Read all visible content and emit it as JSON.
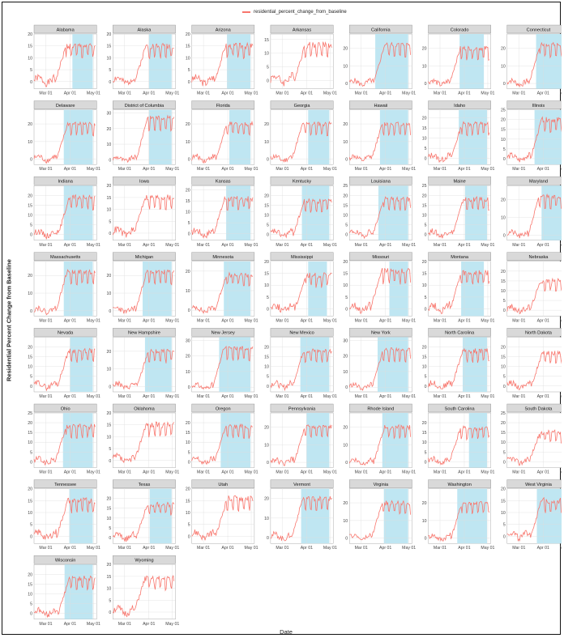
{
  "chart_data": {
    "type": "line",
    "legend": {
      "label": "residential_percent_change_from_baseline",
      "placement": "top",
      "color": "#F8766D"
    },
    "xlabel": "Date",
    "ylabel": "Residential Percent Change from Baseline",
    "x_ticks": [
      "Mar 01",
      "Apr 01",
      "May 01"
    ],
    "x_range": [
      "2020-02-15",
      "2020-05-05"
    ],
    "grid": true,
    "panel_strip_color": "#d9d9d9",
    "shade_color": "#bfe6f2",
    "series_color": "#F8766D",
    "panels": [
      {
        "name": "Alabama",
        "ylim": [
          -3,
          20
        ],
        "yticks": [
          0,
          5,
          10,
          15,
          20
        ],
        "level": 15,
        "shade_start": "2020-04-04",
        "shade_end": "2020-04-30"
      },
      {
        "name": "Alaska",
        "ylim": [
          -3,
          20
        ],
        "yticks": [
          0,
          5,
          10,
          15,
          20
        ],
        "level": 15,
        "shade_start": "2020-04-01",
        "shade_end": "2020-04-30"
      },
      {
        "name": "Arizona",
        "ylim": [
          -3,
          20
        ],
        "yticks": [
          0,
          5,
          10,
          15,
          20
        ],
        "level": 15,
        "shade_start": "2020-03-31",
        "shade_end": "2020-04-30"
      },
      {
        "name": "Arkansas",
        "ylim": [
          -3,
          17
        ],
        "yticks": [
          0,
          5,
          10,
          15
        ],
        "level": 13,
        "shade_start": null,
        "shade_end": null
      },
      {
        "name": "California",
        "ylim": [
          -3,
          28
        ],
        "yticks": [
          0,
          10,
          20
        ],
        "level": 22,
        "shade_start": "2020-03-19",
        "shade_end": "2020-04-30"
      },
      {
        "name": "Colorado",
        "ylim": [
          -3,
          28
        ],
        "yticks": [
          0,
          10,
          20
        ],
        "level": 20,
        "shade_start": "2020-03-26",
        "shade_end": "2020-04-26"
      },
      {
        "name": "Connecticut",
        "ylim": [
          -3,
          28
        ],
        "yticks": [
          0,
          10,
          20
        ],
        "level": 22,
        "shade_start": "2020-03-23",
        "shade_end": "2020-04-30"
      },
      {
        "name": "Delaware",
        "ylim": [
          -3,
          28
        ],
        "yticks": [
          0,
          10,
          20
        ],
        "level": 20,
        "shade_start": "2020-03-24",
        "shade_end": "2020-04-30"
      },
      {
        "name": "District of Columbia",
        "ylim": [
          -3,
          32
        ],
        "yticks": [
          0,
          10,
          20,
          30
        ],
        "level": 27,
        "shade_start": "2020-04-01",
        "shade_end": "2020-04-30"
      },
      {
        "name": "Florida",
        "ylim": [
          -3,
          28
        ],
        "yticks": [
          0,
          10,
          20
        ],
        "level": 20,
        "shade_start": "2020-04-03",
        "shade_end": "2020-04-30"
      },
      {
        "name": "Georgia",
        "ylim": [
          -3,
          28
        ],
        "yticks": [
          0,
          10,
          20
        ],
        "level": 20,
        "shade_start": "2020-04-03",
        "shade_end": "2020-04-30"
      },
      {
        "name": "Hawaii",
        "ylim": [
          -3,
          28
        ],
        "yticks": [
          0,
          10,
          20
        ],
        "level": 20,
        "shade_start": "2020-03-25",
        "shade_end": "2020-04-30"
      },
      {
        "name": "Idaho",
        "ylim": [
          -3,
          24
        ],
        "yticks": [
          0,
          5,
          10,
          15,
          20
        ],
        "level": 17,
        "shade_start": "2020-03-25",
        "shade_end": "2020-04-30"
      },
      {
        "name": "Illinois",
        "ylim": [
          -3,
          25
        ],
        "yticks": [
          0,
          5,
          10,
          15,
          20,
          25
        ],
        "level": 20,
        "shade_start": "2020-03-21",
        "shade_end": "2020-04-30"
      },
      {
        "name": "Indiana",
        "ylim": [
          -3,
          25
        ],
        "yticks": [
          0,
          5,
          10,
          15,
          20
        ],
        "level": 19,
        "shade_start": "2020-03-24",
        "shade_end": "2020-04-30"
      },
      {
        "name": "Iowa",
        "ylim": [
          -3,
          20
        ],
        "yticks": [
          0,
          5,
          10,
          15,
          20
        ],
        "level": 15,
        "shade_start": null,
        "shade_end": null
      },
      {
        "name": "Kansas",
        "ylim": [
          -3,
          22
        ],
        "yticks": [
          0,
          5,
          10,
          15,
          20
        ],
        "level": 16,
        "shade_start": "2020-03-30",
        "shade_end": "2020-04-30"
      },
      {
        "name": "Kentucky",
        "ylim": [
          -3,
          25
        ],
        "yticks": [
          0,
          5,
          10,
          15,
          20
        ],
        "level": 17,
        "shade_start": "2020-03-26",
        "shade_end": "2020-04-30"
      },
      {
        "name": "Louisiana",
        "ylim": [
          -3,
          25
        ],
        "yticks": [
          0,
          5,
          10,
          15,
          20,
          25
        ],
        "level": 18,
        "shade_start": "2020-03-23",
        "shade_end": "2020-04-30"
      },
      {
        "name": "Maine",
        "ylim": [
          -3,
          25
        ],
        "yticks": [
          0,
          5,
          10,
          15,
          20,
          25
        ],
        "level": 18,
        "shade_start": "2020-04-02",
        "shade_end": "2020-04-30"
      },
      {
        "name": "Maryland",
        "ylim": [
          -3,
          28
        ],
        "yticks": [
          0,
          10,
          20
        ],
        "level": 22,
        "shade_start": "2020-03-30",
        "shade_end": "2020-04-30"
      },
      {
        "name": "Massachusetts",
        "ylim": [
          -3,
          28
        ],
        "yticks": [
          0,
          10,
          20
        ],
        "level": 22,
        "shade_start": "2020-03-24",
        "shade_end": "2020-04-30"
      },
      {
        "name": "Michigan",
        "ylim": [
          -3,
          28
        ],
        "yticks": [
          0,
          10,
          20
        ],
        "level": 22,
        "shade_start": "2020-03-24",
        "shade_end": "2020-04-30"
      },
      {
        "name": "Minnesota",
        "ylim": [
          -3,
          25
        ],
        "yticks": [
          0,
          10,
          20
        ],
        "level": 18,
        "shade_start": "2020-03-27",
        "shade_end": "2020-04-30"
      },
      {
        "name": "Mississippi",
        "ylim": [
          -3,
          20
        ],
        "yticks": [
          0,
          5,
          10,
          15,
          20
        ],
        "level": 14,
        "shade_start": "2020-04-03",
        "shade_end": "2020-04-27"
      },
      {
        "name": "Missouri",
        "ylim": [
          -3,
          20
        ],
        "yticks": [
          0,
          5,
          10,
          15,
          20
        ],
        "level": 16,
        "shade_start": "2020-04-06",
        "shade_end": "2020-04-30"
      },
      {
        "name": "Montana",
        "ylim": [
          -3,
          20
        ],
        "yticks": [
          0,
          5,
          10,
          15,
          20
        ],
        "level": 15,
        "shade_start": "2020-03-28",
        "shade_end": "2020-04-26"
      },
      {
        "name": "Nebraska",
        "ylim": [
          -3,
          25
        ],
        "yticks": [
          0,
          5,
          10,
          15,
          20
        ],
        "level": 15,
        "shade_start": null,
        "shade_end": null
      },
      {
        "name": "Nevada",
        "ylim": [
          -3,
          25
        ],
        "yticks": [
          0,
          5,
          10,
          15,
          20
        ],
        "level": 18,
        "shade_start": "2020-04-01",
        "shade_end": "2020-04-30"
      },
      {
        "name": "New Hampshire",
        "ylim": [
          -3,
          28
        ],
        "yticks": [
          0,
          10,
          20
        ],
        "level": 20,
        "shade_start": "2020-03-27",
        "shade_end": "2020-04-30"
      },
      {
        "name": "New Jersey",
        "ylim": [
          -3,
          32
        ],
        "yticks": [
          0,
          10,
          20,
          30
        ],
        "level": 25,
        "shade_start": "2020-03-21",
        "shade_end": "2020-04-30"
      },
      {
        "name": "New Mexico",
        "ylim": [
          -3,
          25
        ],
        "yticks": [
          0,
          5,
          10,
          15,
          20
        ],
        "level": 18,
        "shade_start": "2020-03-24",
        "shade_end": "2020-04-30"
      },
      {
        "name": "New York",
        "ylim": [
          -3,
          32
        ],
        "yticks": [
          0,
          10,
          20,
          30
        ],
        "level": 24,
        "shade_start": "2020-03-22",
        "shade_end": "2020-04-30"
      },
      {
        "name": "North Carolina",
        "ylim": [
          -3,
          25
        ],
        "yticks": [
          0,
          5,
          10,
          15,
          20
        ],
        "level": 18,
        "shade_start": "2020-03-30",
        "shade_end": "2020-04-30"
      },
      {
        "name": "North Dakota",
        "ylim": [
          -3,
          25
        ],
        "yticks": [
          0,
          5,
          10,
          15,
          20
        ],
        "level": 17,
        "shade_start": null,
        "shade_end": null
      },
      {
        "name": "Ohio",
        "ylim": [
          -3,
          25
        ],
        "yticks": [
          0,
          5,
          10,
          15,
          20,
          25
        ],
        "level": 18,
        "shade_start": "2020-03-23",
        "shade_end": "2020-04-30"
      },
      {
        "name": "Oklahoma",
        "ylim": [
          -3,
          20
        ],
        "yticks": [
          0,
          5,
          10,
          15,
          20
        ],
        "level": 15,
        "shade_start": null,
        "shade_end": null
      },
      {
        "name": "Oregon",
        "ylim": [
          -3,
          25
        ],
        "yticks": [
          0,
          5,
          10,
          15,
          20
        ],
        "level": 18,
        "shade_start": "2020-03-23",
        "shade_end": "2020-04-30"
      },
      {
        "name": "Pennsylvania",
        "ylim": [
          -3,
          28
        ],
        "yticks": [
          0,
          10,
          20
        ],
        "level": 20,
        "shade_start": "2020-04-01",
        "shade_end": "2020-04-30"
      },
      {
        "name": "Rhode Island",
        "ylim": [
          -3,
          28
        ],
        "yticks": [
          0,
          10,
          20
        ],
        "level": 20,
        "shade_start": "2020-03-28",
        "shade_end": "2020-04-30"
      },
      {
        "name": "South Carolina",
        "ylim": [
          -3,
          25
        ],
        "yticks": [
          0,
          5,
          10,
          15,
          20
        ],
        "level": 17,
        "shade_start": "2020-04-07",
        "shade_end": "2020-04-30"
      },
      {
        "name": "South Dakota",
        "ylim": [
          -3,
          25
        ],
        "yticks": [
          0,
          5,
          10,
          15,
          20,
          25
        ],
        "level": 15,
        "shade_start": null,
        "shade_end": null
      },
      {
        "name": "Tennessee",
        "ylim": [
          -3,
          20
        ],
        "yticks": [
          0,
          5,
          10,
          15,
          20
        ],
        "level": 15,
        "shade_start": "2020-03-31",
        "shade_end": "2020-04-30"
      },
      {
        "name": "Texas",
        "ylim": [
          -3,
          25
        ],
        "yticks": [
          0,
          5,
          10,
          15,
          20
        ],
        "level": 17,
        "shade_start": "2020-04-02",
        "shade_end": "2020-04-30"
      },
      {
        "name": "Utah",
        "ylim": [
          -3,
          20
        ],
        "yticks": [
          0,
          5,
          10,
          15,
          20
        ],
        "level": 16,
        "shade_start": null,
        "shade_end": null
      },
      {
        "name": "Vermont",
        "ylim": [
          -3,
          25
        ],
        "yticks": [
          0,
          10,
          20
        ],
        "level": 20,
        "shade_start": "2020-03-25",
        "shade_end": "2020-04-30"
      },
      {
        "name": "Virginia",
        "ylim": [
          -3,
          28
        ],
        "yticks": [
          0,
          10,
          20
        ],
        "level": 20,
        "shade_start": "2020-03-30",
        "shade_end": "2020-04-30"
      },
      {
        "name": "Washington",
        "ylim": [
          -3,
          28
        ],
        "yticks": [
          0,
          10,
          20
        ],
        "level": 20,
        "shade_start": "2020-03-23",
        "shade_end": "2020-04-30"
      },
      {
        "name": "West Virginia",
        "ylim": [
          -3,
          20
        ],
        "yticks": [
          0,
          5,
          10,
          15,
          20
        ],
        "level": 15,
        "shade_start": "2020-03-24",
        "shade_end": "2020-04-30"
      },
      {
        "name": "Wisconsin",
        "ylim": [
          -3,
          25
        ],
        "yticks": [
          0,
          5,
          10,
          15,
          20
        ],
        "level": 18,
        "shade_start": "2020-03-25",
        "shade_end": "2020-04-30"
      },
      {
        "name": "Wyoming",
        "ylim": [
          -3,
          20
        ],
        "yticks": [
          0,
          5,
          10,
          15,
          20
        ],
        "level": 14,
        "shade_start": null,
        "shade_end": null
      }
    ]
  }
}
